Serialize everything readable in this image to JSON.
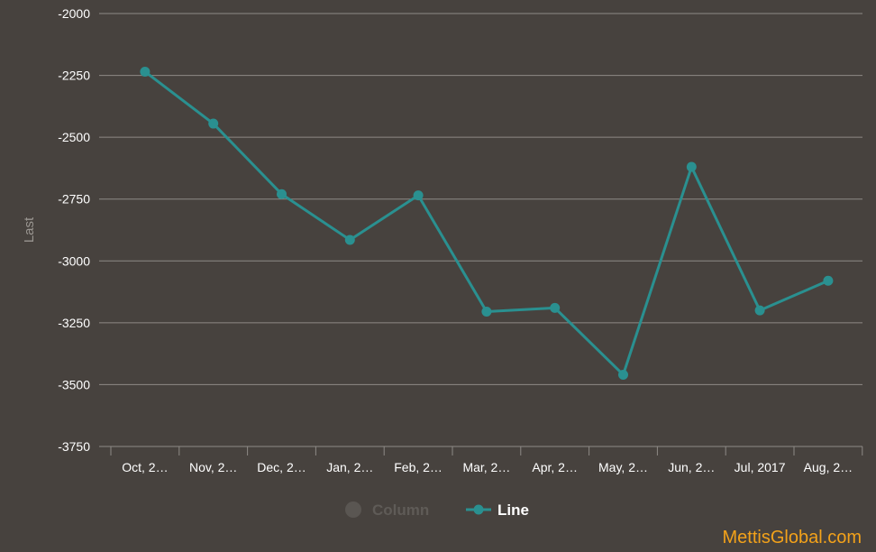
{
  "chart_data": {
    "type": "line",
    "title": "",
    "xlabel": "",
    "ylabel": "Last",
    "ylim": [
      -3750,
      -2000
    ],
    "yticks": [
      -2000,
      -2250,
      -2500,
      -2750,
      -3000,
      -3250,
      -3500,
      -3750
    ],
    "grid": true,
    "legend_position": "bottom",
    "categories": [
      "Oct, 2…",
      "Nov, 2…",
      "Dec, 2…",
      "Jan, 2…",
      "Feb, 2…",
      "Mar, 2…",
      "Apr, 2…",
      "May, 2…",
      "Jun, 2…",
      "Jul, 2017",
      "Aug, 2…"
    ],
    "legend": [
      {
        "name": "Column",
        "color": "#5a5652",
        "text_color": "#5f5b57",
        "visible": false
      },
      {
        "name": "Line",
        "color": "#2a9090",
        "text_color": "#ffffff",
        "visible": true
      }
    ],
    "series": [
      {
        "name": "Line",
        "type": "line",
        "color": "#2a9090",
        "values": [
          -2235,
          -2445,
          -2730,
          -2915,
          -2735,
          -3205,
          -3190,
          -3460,
          -2620,
          -3200,
          -3080
        ]
      }
    ]
  },
  "watermark": "MettisGlobal.com",
  "colors": {
    "background": "#47423e",
    "grid": "#8e8a86",
    "watermark": "#f3a21a"
  }
}
